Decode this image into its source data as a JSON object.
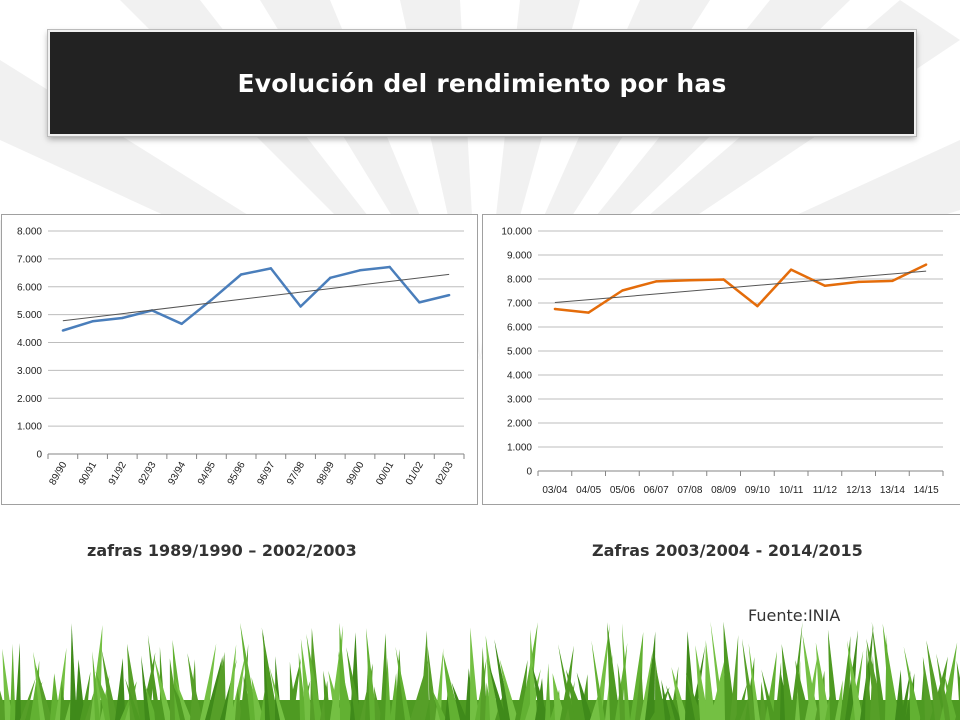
{
  "title": "Evolución del rendimiento por has",
  "captions": {
    "left": "zafras 1989/1990 – 2002/2003",
    "right": "Zafras 2003/2004 - 2014/2015"
  },
  "source": "Fuente:INIA",
  "colors": {
    "title_bg": "#222222",
    "series_left": "#4a7ebb",
    "series_right": "#e46c0a",
    "trendline": "#555555",
    "grass": "#5a9e2a"
  },
  "chart_data": [
    {
      "type": "line",
      "categories": [
        "89/90",
        "90/91",
        "91/92",
        "92/93",
        "93/94",
        "94/95",
        "95/96",
        "96/97",
        "97/98",
        "98/99",
        "99/00",
        "00/01",
        "01/02",
        "02/03"
      ],
      "series": [
        {
          "values": [
            4430,
            4760,
            4880,
            5150,
            4670,
            5530,
            6440,
            6660,
            5290,
            6320,
            6590,
            6710,
            5440,
            5700
          ]
        }
      ],
      "trendline": "linear",
      "yticks": [
        "8.000",
        "7.000",
        "6.000",
        "5.000",
        "4.000",
        "3.000",
        "2.000",
        "1.000",
        "0"
      ],
      "ylim": [
        0,
        8000
      ],
      "grid": true,
      "legend": "none"
    },
    {
      "type": "line",
      "categories": [
        "03/04",
        "04/05",
        "05/06",
        "06/07",
        "07/08",
        "08/09",
        "09/10",
        "10/11",
        "11/12",
        "12/13",
        "13/14",
        "14/15"
      ],
      "series": [
        {
          "values": [
            6750,
            6600,
            7520,
            7900,
            7950,
            7980,
            6870,
            8390,
            7720,
            7880,
            7920,
            8600
          ]
        }
      ],
      "trendline": "linear",
      "yticks": [
        "10.000",
        "9.000",
        "8.000",
        "7.000",
        "6.000",
        "5.000",
        "4.000",
        "3.000",
        "2.000",
        "1.000",
        "0"
      ],
      "ylim": [
        0,
        10000
      ],
      "grid": true,
      "legend": "none"
    }
  ]
}
